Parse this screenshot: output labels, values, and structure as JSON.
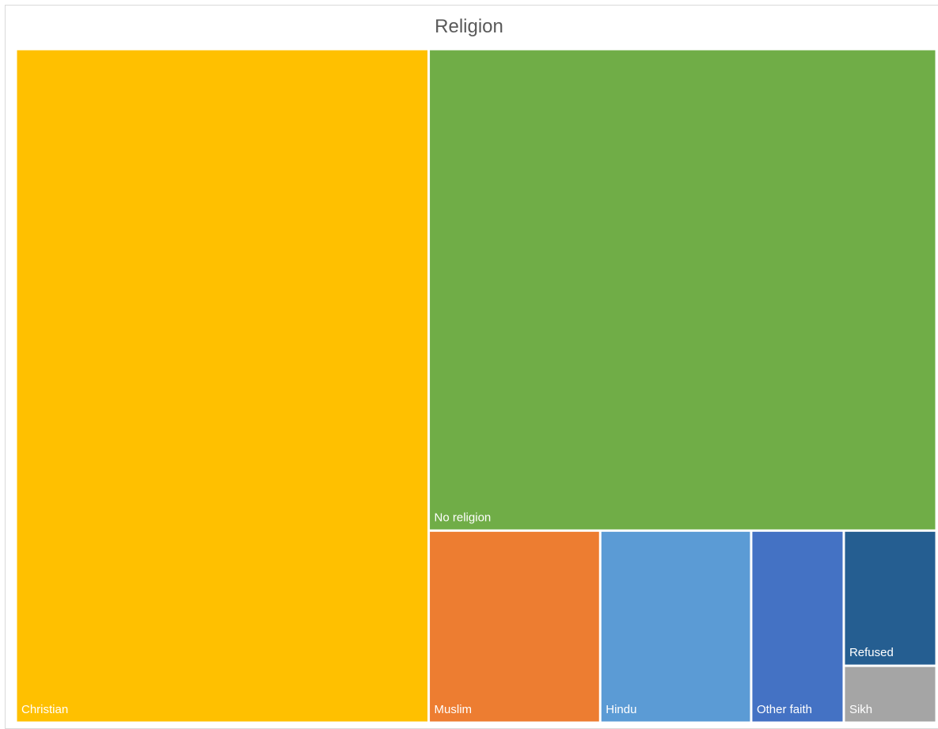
{
  "chart_data": {
    "type": "treemap",
    "title": "Religion",
    "series": [
      {
        "name": "Christian",
        "value": 0.422,
        "color": "#FFC000"
      },
      {
        "name": "No religion",
        "value": 0.371,
        "color": "#70AD47"
      },
      {
        "name": "Muslim",
        "value": 0.05,
        "color": "#ED7D31"
      },
      {
        "name": "Hindu",
        "value": 0.044,
        "color": "#5B9BD5"
      },
      {
        "name": "Other faith",
        "value": 0.027,
        "color": "#4472C4"
      },
      {
        "name": "Refused",
        "value": 0.019,
        "color": "#255E91"
      },
      {
        "name": "Sikh",
        "value": 0.008,
        "color": "#A5A5A5"
      }
    ]
  }
}
